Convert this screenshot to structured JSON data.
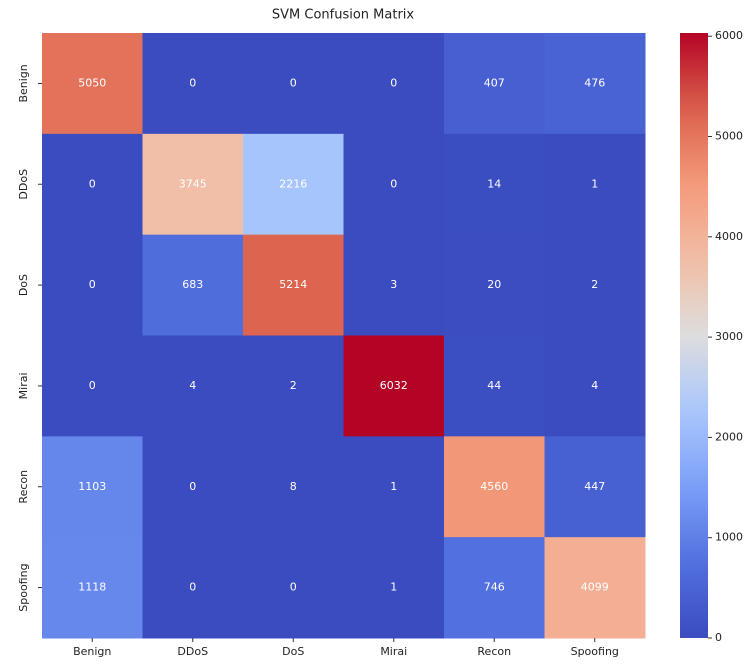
{
  "chart_data": {
    "type": "heatmap",
    "title": "SVM Confusion Matrix",
    "x_categories": [
      "Benign",
      "DDoS",
      "DoS",
      "Mirai",
      "Recon",
      "Spoofing"
    ],
    "y_categories": [
      "Benign",
      "DDoS",
      "DoS",
      "Mirai",
      "Recon",
      "Spoofing"
    ],
    "values": [
      [
        5050,
        0,
        0,
        0,
        407,
        476
      ],
      [
        0,
        3745,
        2216,
        0,
        14,
        1
      ],
      [
        0,
        683,
        5214,
        3,
        20,
        2
      ],
      [
        0,
        4,
        2,
        6032,
        44,
        4
      ],
      [
        1103,
        0,
        8,
        1,
        4560,
        447
      ],
      [
        1118,
        0,
        0,
        1,
        746,
        4099
      ]
    ],
    "zlim": [
      0,
      6032
    ],
    "zticks": [
      0,
      1000,
      2000,
      3000,
      4000,
      5000,
      6000
    ],
    "colormap": "coolwarm"
  }
}
